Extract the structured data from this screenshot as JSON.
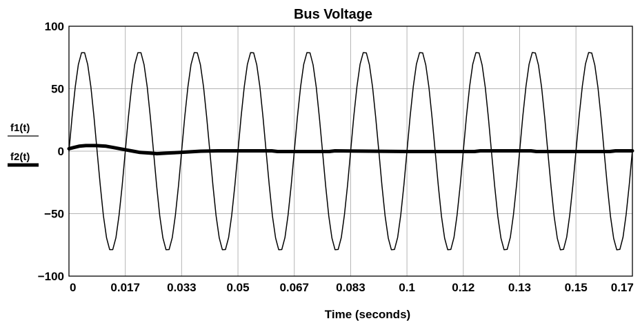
{
  "chart_data": {
    "type": "line",
    "title": "Bus Voltage",
    "xlabel": "Time (seconds)",
    "ylabel": "",
    "xlim": [
      0,
      0.1667
    ],
    "ylim": [
      -100,
      100
    ],
    "grid": true,
    "legend_placement": "left",
    "x_ticks": [
      {
        "value": 0,
        "label": "0"
      },
      {
        "value": 0.016667,
        "label": "0.017"
      },
      {
        "value": 0.033333,
        "label": "0.033"
      },
      {
        "value": 0.05,
        "label": "0.05"
      },
      {
        "value": 0.066667,
        "label": "0.067"
      },
      {
        "value": 0.083333,
        "label": "0.083"
      },
      {
        "value": 0.1,
        "label": "0.1"
      },
      {
        "value": 0.116667,
        "label": "0.12"
      },
      {
        "value": 0.133333,
        "label": "0.13"
      },
      {
        "value": 0.15,
        "label": "0.15"
      },
      {
        "value": 0.166667,
        "label": "0.17"
      }
    ],
    "y_ticks": [
      {
        "value": 100,
        "label": "100"
      },
      {
        "value": 50,
        "label": "50"
      },
      {
        "value": 0,
        "label": "0"
      },
      {
        "value": -50,
        "label": "−50"
      },
      {
        "value": -100,
        "label": "−100"
      }
    ],
    "series": [
      {
        "name": "f1(t)",
        "color": "#000000",
        "style": "thin",
        "kind": "sine",
        "amplitude": 80,
        "frequency_hz": 60,
        "phase": 0,
        "x_start": 0,
        "x_end": 0.1667
      },
      {
        "name": "f2(t)",
        "color": "#000000",
        "style": "thick",
        "x": [
          0,
          0.0015,
          0.003,
          0.005,
          0.008,
          0.011,
          0.013,
          0.016,
          0.019,
          0.021,
          0.024,
          0.026,
          0.029,
          0.033,
          0.036,
          0.039,
          0.044,
          0.05,
          0.06,
          0.0617,
          0.077,
          0.0787,
          0.1,
          0.12,
          0.1217,
          0.1367,
          0.1383,
          0.16,
          0.1617,
          0.1667
        ],
        "values": [
          2,
          3,
          4,
          4.5,
          4.5,
          4,
          3,
          1.5,
          0,
          -1,
          -1.5,
          -2,
          -1.5,
          -1,
          -0.5,
          0,
          0.3,
          0.3,
          0.3,
          -0.3,
          -0.3,
          0.3,
          -0.3,
          -0.3,
          0.3,
          0.3,
          -0.3,
          -0.3,
          0.3,
          0.3
        ]
      }
    ]
  }
}
